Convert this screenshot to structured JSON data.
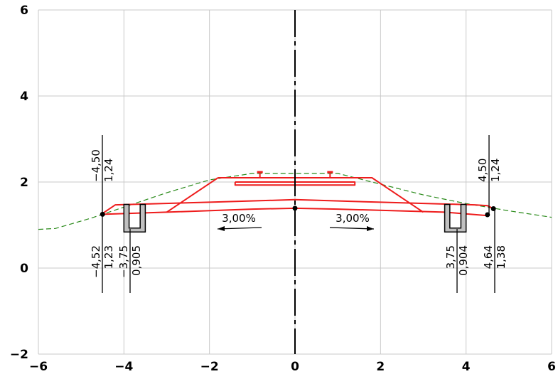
{
  "chart_data": {
    "type": "diagram",
    "title": "",
    "xlim": [
      -6,
      6
    ],
    "ylim": [
      -2,
      6
    ],
    "xticks": [
      "−6",
      "−4",
      "−2",
      "0",
      "2",
      "4",
      "6"
    ],
    "yticks": [
      "−2",
      "0",
      "2",
      "4",
      "6"
    ],
    "grid": true,
    "slopes": [
      {
        "label": "3,00%",
        "side": "left"
      },
      {
        "label": "3,00%",
        "side": "right"
      }
    ],
    "dimension_labels": [
      {
        "x": -4.5,
        "y": 1.24,
        "x_text": "−4,50",
        "y_text": "1,24"
      },
      {
        "x": -4.52,
        "y": 1.23,
        "x_text": "−4,52",
        "y_text": "1,23"
      },
      {
        "x": -3.75,
        "y": 0.905,
        "x_text": "−3,75",
        "y_text": "0,905"
      },
      {
        "x": 3.75,
        "y": 0.904,
        "x_text": "3,75",
        "y_text": "0,904"
      },
      {
        "x": 4.5,
        "y": 1.24,
        "x_text": "4,50",
        "y_text": "1,24"
      },
      {
        "x": 4.64,
        "y": 1.38,
        "x_text": "4,64",
        "y_text": "1,38"
      }
    ],
    "ground_line": [
      [
        -6.0,
        0.9
      ],
      [
        -5.6,
        0.92
      ],
      [
        -4.8,
        1.15
      ],
      [
        -3.9,
        1.45
      ],
      [
        -3.0,
        1.75
      ],
      [
        -2.0,
        2.05
      ],
      [
        -1.0,
        2.2
      ],
      [
        0.0,
        2.2
      ],
      [
        1.0,
        2.2
      ],
      [
        2.0,
        1.95
      ],
      [
        3.0,
        1.7
      ],
      [
        4.0,
        1.5
      ],
      [
        5.0,
        1.33
      ],
      [
        6.0,
        1.18
      ]
    ],
    "colors": {
      "structure": "#ee1c1c",
      "ground": "#2a8a1a",
      "axis": "#000000",
      "grid": "#c8c8c8",
      "ditch_fill": "#c0c0c0"
    }
  }
}
